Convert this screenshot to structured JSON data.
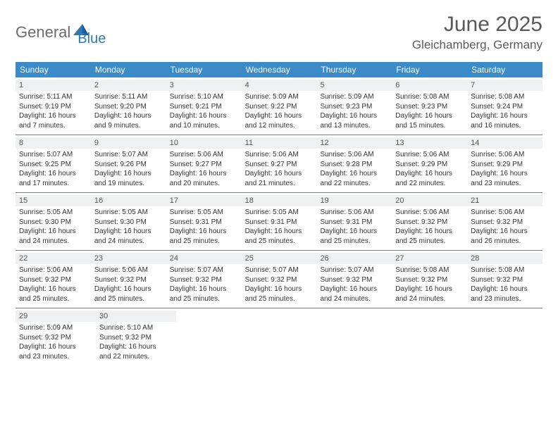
{
  "logo": {
    "part1": "General",
    "part2": "Blue"
  },
  "title": "June 2025",
  "location": "Gleichamberg, Germany",
  "colors": {
    "header_bg": "#3b8bc8",
    "header_text": "#ffffff",
    "daynum_bg": "#eef0f1",
    "rule": "#3b8bc8",
    "body_text": "#333333",
    "logo_gray": "#6b6b6b",
    "logo_blue": "#2f78b7"
  },
  "day_names": [
    "Sunday",
    "Monday",
    "Tuesday",
    "Wednesday",
    "Thursday",
    "Friday",
    "Saturday"
  ],
  "weeks": [
    [
      {
        "d": "1",
        "sr": "Sunrise: 5:11 AM",
        "ss": "Sunset: 9:19 PM",
        "dl1": "Daylight: 16 hours",
        "dl2": "and 7 minutes."
      },
      {
        "d": "2",
        "sr": "Sunrise: 5:11 AM",
        "ss": "Sunset: 9:20 PM",
        "dl1": "Daylight: 16 hours",
        "dl2": "and 9 minutes."
      },
      {
        "d": "3",
        "sr": "Sunrise: 5:10 AM",
        "ss": "Sunset: 9:21 PM",
        "dl1": "Daylight: 16 hours",
        "dl2": "and 10 minutes."
      },
      {
        "d": "4",
        "sr": "Sunrise: 5:09 AM",
        "ss": "Sunset: 9:22 PM",
        "dl1": "Daylight: 16 hours",
        "dl2": "and 12 minutes."
      },
      {
        "d": "5",
        "sr": "Sunrise: 5:09 AM",
        "ss": "Sunset: 9:23 PM",
        "dl1": "Daylight: 16 hours",
        "dl2": "and 13 minutes."
      },
      {
        "d": "6",
        "sr": "Sunrise: 5:08 AM",
        "ss": "Sunset: 9:23 PM",
        "dl1": "Daylight: 16 hours",
        "dl2": "and 15 minutes."
      },
      {
        "d": "7",
        "sr": "Sunrise: 5:08 AM",
        "ss": "Sunset: 9:24 PM",
        "dl1": "Daylight: 16 hours",
        "dl2": "and 16 minutes."
      }
    ],
    [
      {
        "d": "8",
        "sr": "Sunrise: 5:07 AM",
        "ss": "Sunset: 9:25 PM",
        "dl1": "Daylight: 16 hours",
        "dl2": "and 17 minutes."
      },
      {
        "d": "9",
        "sr": "Sunrise: 5:07 AM",
        "ss": "Sunset: 9:26 PM",
        "dl1": "Daylight: 16 hours",
        "dl2": "and 19 minutes."
      },
      {
        "d": "10",
        "sr": "Sunrise: 5:06 AM",
        "ss": "Sunset: 9:27 PM",
        "dl1": "Daylight: 16 hours",
        "dl2": "and 20 minutes."
      },
      {
        "d": "11",
        "sr": "Sunrise: 5:06 AM",
        "ss": "Sunset: 9:27 PM",
        "dl1": "Daylight: 16 hours",
        "dl2": "and 21 minutes."
      },
      {
        "d": "12",
        "sr": "Sunrise: 5:06 AM",
        "ss": "Sunset: 9:28 PM",
        "dl1": "Daylight: 16 hours",
        "dl2": "and 22 minutes."
      },
      {
        "d": "13",
        "sr": "Sunrise: 5:06 AM",
        "ss": "Sunset: 9:29 PM",
        "dl1": "Daylight: 16 hours",
        "dl2": "and 22 minutes."
      },
      {
        "d": "14",
        "sr": "Sunrise: 5:06 AM",
        "ss": "Sunset: 9:29 PM",
        "dl1": "Daylight: 16 hours",
        "dl2": "and 23 minutes."
      }
    ],
    [
      {
        "d": "15",
        "sr": "Sunrise: 5:05 AM",
        "ss": "Sunset: 9:30 PM",
        "dl1": "Daylight: 16 hours",
        "dl2": "and 24 minutes."
      },
      {
        "d": "16",
        "sr": "Sunrise: 5:05 AM",
        "ss": "Sunset: 9:30 PM",
        "dl1": "Daylight: 16 hours",
        "dl2": "and 24 minutes."
      },
      {
        "d": "17",
        "sr": "Sunrise: 5:05 AM",
        "ss": "Sunset: 9:31 PM",
        "dl1": "Daylight: 16 hours",
        "dl2": "and 25 minutes."
      },
      {
        "d": "18",
        "sr": "Sunrise: 5:05 AM",
        "ss": "Sunset: 9:31 PM",
        "dl1": "Daylight: 16 hours",
        "dl2": "and 25 minutes."
      },
      {
        "d": "19",
        "sr": "Sunrise: 5:06 AM",
        "ss": "Sunset: 9:31 PM",
        "dl1": "Daylight: 16 hours",
        "dl2": "and 25 minutes."
      },
      {
        "d": "20",
        "sr": "Sunrise: 5:06 AM",
        "ss": "Sunset: 9:32 PM",
        "dl1": "Daylight: 16 hours",
        "dl2": "and 25 minutes."
      },
      {
        "d": "21",
        "sr": "Sunrise: 5:06 AM",
        "ss": "Sunset: 9:32 PM",
        "dl1": "Daylight: 16 hours",
        "dl2": "and 26 minutes."
      }
    ],
    [
      {
        "d": "22",
        "sr": "Sunrise: 5:06 AM",
        "ss": "Sunset: 9:32 PM",
        "dl1": "Daylight: 16 hours",
        "dl2": "and 25 minutes."
      },
      {
        "d": "23",
        "sr": "Sunrise: 5:06 AM",
        "ss": "Sunset: 9:32 PM",
        "dl1": "Daylight: 16 hours",
        "dl2": "and 25 minutes."
      },
      {
        "d": "24",
        "sr": "Sunrise: 5:07 AM",
        "ss": "Sunset: 9:32 PM",
        "dl1": "Daylight: 16 hours",
        "dl2": "and 25 minutes."
      },
      {
        "d": "25",
        "sr": "Sunrise: 5:07 AM",
        "ss": "Sunset: 9:32 PM",
        "dl1": "Daylight: 16 hours",
        "dl2": "and 25 minutes."
      },
      {
        "d": "26",
        "sr": "Sunrise: 5:07 AM",
        "ss": "Sunset: 9:32 PM",
        "dl1": "Daylight: 16 hours",
        "dl2": "and 24 minutes."
      },
      {
        "d": "27",
        "sr": "Sunrise: 5:08 AM",
        "ss": "Sunset: 9:32 PM",
        "dl1": "Daylight: 16 hours",
        "dl2": "and 24 minutes."
      },
      {
        "d": "28",
        "sr": "Sunrise: 5:08 AM",
        "ss": "Sunset: 9:32 PM",
        "dl1": "Daylight: 16 hours",
        "dl2": "and 23 minutes."
      }
    ],
    [
      {
        "d": "29",
        "sr": "Sunrise: 5:09 AM",
        "ss": "Sunset: 9:32 PM",
        "dl1": "Daylight: 16 hours",
        "dl2": "and 23 minutes."
      },
      {
        "d": "30",
        "sr": "Sunrise: 5:10 AM",
        "ss": "Sunset: 9:32 PM",
        "dl1": "Daylight: 16 hours",
        "dl2": "and 22 minutes."
      },
      null,
      null,
      null,
      null,
      null
    ]
  ]
}
